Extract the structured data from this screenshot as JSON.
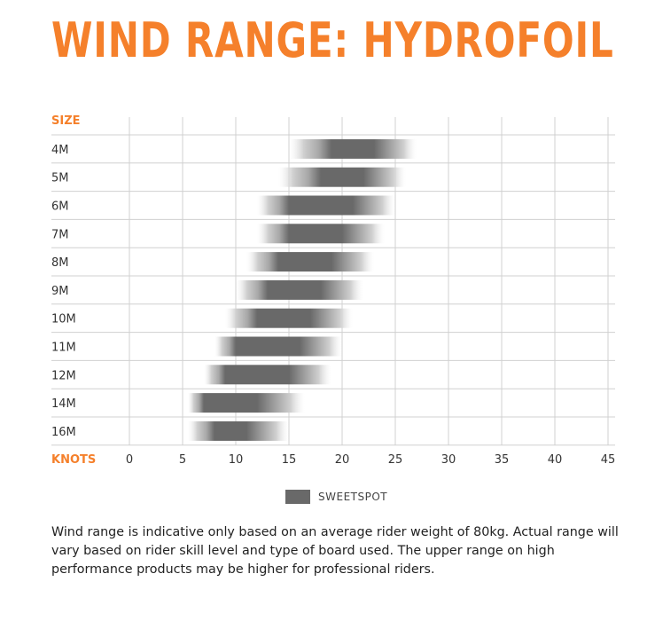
{
  "title": "WIND RANGE: HYDROFOIL",
  "legend": {
    "label": "SWEETSPOT",
    "color": "#696969"
  },
  "note": "Wind range is indicative only based on an average rider weight of 80kg. Actual range will vary based on rider skill level and type of board used. The upper range on high performance products may be higher for professional riders.",
  "colors": {
    "accent": "#f5802b",
    "grid": "#d0d0d0",
    "sweetspot": "#696969"
  },
  "chart_data": {
    "type": "bar",
    "orientation": "horizontal-range",
    "ylabel": "SIZE",
    "xlabel": "KNOTS",
    "xlim": [
      0,
      45
    ],
    "xticks": [
      0,
      5,
      10,
      15,
      20,
      25,
      30,
      35,
      40,
      45
    ],
    "grid": true,
    "categories": [
      "4M",
      "5M",
      "6M",
      "7M",
      "8M",
      "9M",
      "10M",
      "11M",
      "12M",
      "14M",
      "16M"
    ],
    "ranges": [
      {
        "size": "4M",
        "min": 15,
        "max": 27,
        "sweet": [
          19,
          23
        ]
      },
      {
        "size": "5M",
        "min": 14,
        "max": 26,
        "sweet": [
          18,
          22
        ]
      },
      {
        "size": "6M",
        "min": 12,
        "max": 25,
        "sweet": [
          15,
          21
        ]
      },
      {
        "size": "7M",
        "min": 12,
        "max": 24,
        "sweet": [
          15,
          20
        ]
      },
      {
        "size": "8M",
        "min": 11,
        "max": 23,
        "sweet": [
          14,
          19
        ]
      },
      {
        "size": "9M",
        "min": 10,
        "max": 22,
        "sweet": [
          13,
          18
        ]
      },
      {
        "size": "10M",
        "min": 9,
        "max": 21,
        "sweet": [
          12,
          17
        ]
      },
      {
        "size": "11M",
        "min": 8,
        "max": 20,
        "sweet": [
          10,
          16
        ]
      },
      {
        "size": "12M",
        "min": 7,
        "max": 19,
        "sweet": [
          9,
          15
        ]
      },
      {
        "size": "14M",
        "min": 5.5,
        "max": 16.5,
        "sweet": [
          7,
          12
        ]
      },
      {
        "size": "16M",
        "min": 5.5,
        "max": 15,
        "sweet": [
          8,
          11
        ]
      }
    ]
  }
}
